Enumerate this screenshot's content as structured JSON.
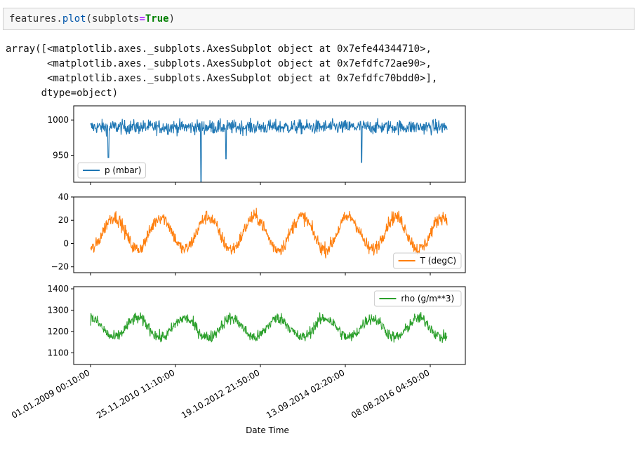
{
  "input": {
    "code_prefix": "features.",
    "code_fn": "plot",
    "code_open": "(subplots",
    "code_eq": "=",
    "code_kw": "True",
    "code_close": ")"
  },
  "output": {
    "lines": [
      "array([<matplotlib.axes._subplots.AxesSubplot object at 0x7efe44344710>,",
      "       <matplotlib.axes._subplots.AxesSubplot object at 0x7efdfc72ae90>,",
      "       <matplotlib.axes._subplots.AxesSubplot object at 0x7efdfc70bdd0>],",
      "      dtype=object)"
    ]
  },
  "chart_data": {
    "type": "line",
    "xlabel": "Date Time",
    "x_ticks": [
      "01.01.2009 00:10:00",
      "25.11.2010 11:10:00",
      "19.10.2012 21:50:00",
      "13.09.2014 02:20:00",
      "08.08.2016 04:50:00"
    ],
    "x_range": [
      "01.01.2009",
      "01.01.2017"
    ],
    "subplots": [
      {
        "series": [
          {
            "name": "p (mbar)",
            "color": "#1f77b4"
          }
        ],
        "legend": "lower-left",
        "y_ticks": [
          950,
          1000
        ],
        "ylim": [
          912,
          1020
        ],
        "approx": {
          "baseline": 990,
          "noise": 10,
          "seasonal_amp": 0,
          "min_spike": 913,
          "spikes": [
            947,
            920,
            945,
            940
          ]
        }
      },
      {
        "series": [
          {
            "name": "T (degC)",
            "color": "#ff7f0e"
          }
        ],
        "legend": "lower-right",
        "y_ticks": [
          -20,
          0,
          20,
          40
        ],
        "ylim": [
          -25,
          40
        ],
        "approx": {
          "baseline": 9,
          "noise": 6,
          "seasonal_amp": 14,
          "seasonal_phase": "peak-summer"
        }
      },
      {
        "series": [
          {
            "name": "rho (g/m**3)",
            "color": "#2ca02c"
          }
        ],
        "legend": "upper-right",
        "y_ticks": [
          1100,
          1200,
          1300,
          1400
        ],
        "ylim": [
          1045,
          1410
        ],
        "approx": {
          "baseline": 1217,
          "noise": 28,
          "seasonal_amp": -45,
          "seasonal_phase": "peak-winter"
        }
      }
    ]
  }
}
